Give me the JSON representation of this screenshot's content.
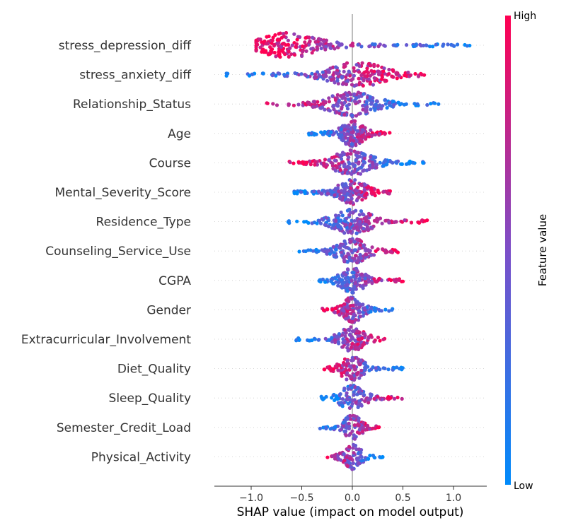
{
  "chart_data": {
    "type": "scatter",
    "subtype": "shap-beeswarm",
    "title": "",
    "xlabel": "SHAP value (impact on model output)",
    "ylabel": "",
    "xlim": [
      -1.35,
      1.32
    ],
    "x_ticks": [
      -1.0,
      -0.5,
      0.0,
      0.5,
      1.0
    ],
    "x_tick_labels": [
      "−1.0",
      "−0.5",
      "0.0",
      "0.5",
      "1.0"
    ],
    "grid": false,
    "zero_line": true,
    "colorbar": {
      "title": "Feature value",
      "high_label": "High",
      "low_label": "Low",
      "low_color": "#008bfb",
      "mid_color": "#7c4fc8",
      "high_color": "#ff0052"
    },
    "features": [
      {
        "name": "stress_depression_diff",
        "min": -0.95,
        "max": 1.2,
        "low_side": "right",
        "density_center": -0.62,
        "spread": 0.9
      },
      {
        "name": "stress_anxiety_diff",
        "min": -1.25,
        "max": 0.72,
        "low_side": "left",
        "density_center": 0.05,
        "spread": 0.75
      },
      {
        "name": "Relationship_Status",
        "min": -0.85,
        "max": 0.86,
        "low_side": "right",
        "density_center": 0.0,
        "spread": 0.6
      },
      {
        "name": "Age",
        "min": -0.43,
        "max": 0.37,
        "low_side": "left",
        "density_center": 0.0,
        "spread": 0.55
      },
      {
        "name": "Course",
        "min": -0.64,
        "max": 0.72,
        "low_side": "right",
        "density_center": 0.0,
        "spread": 0.55
      },
      {
        "name": "Mental_Severity_Score",
        "min": -0.6,
        "max": 0.4,
        "low_side": "left",
        "density_center": 0.0,
        "spread": 0.5
      },
      {
        "name": "Residence_Type",
        "min": -0.64,
        "max": 0.74,
        "low_side": "left",
        "density_center": 0.0,
        "spread": 0.5
      },
      {
        "name": "Counseling_Service_Use",
        "min": -0.55,
        "max": 0.5,
        "low_side": "left",
        "density_center": 0.0,
        "spread": 0.5
      },
      {
        "name": "CGPA",
        "min": -0.33,
        "max": 0.5,
        "low_side": "left",
        "density_center": 0.0,
        "spread": 0.45
      },
      {
        "name": "Gender",
        "min": -0.3,
        "max": 0.42,
        "low_side": "right",
        "density_center": 0.0,
        "spread": 0.45
      },
      {
        "name": "Extracurricular_Involvement",
        "min": -0.57,
        "max": 0.33,
        "low_side": "left",
        "density_center": 0.0,
        "spread": 0.45
      },
      {
        "name": "Diet_Quality",
        "min": -0.28,
        "max": 0.5,
        "low_side": "right",
        "density_center": 0.0,
        "spread": 0.4
      },
      {
        "name": "Sleep_Quality",
        "min": -0.32,
        "max": 0.52,
        "low_side": "left",
        "density_center": 0.0,
        "spread": 0.4
      },
      {
        "name": "Semester_Credit_Load",
        "min": -0.33,
        "max": 0.27,
        "low_side": "left",
        "density_center": 0.0,
        "spread": 0.35
      },
      {
        "name": "Physical_Activity",
        "min": -0.29,
        "max": 0.3,
        "low_side": "right",
        "density_center": 0.0,
        "spread": 0.35
      }
    ]
  }
}
